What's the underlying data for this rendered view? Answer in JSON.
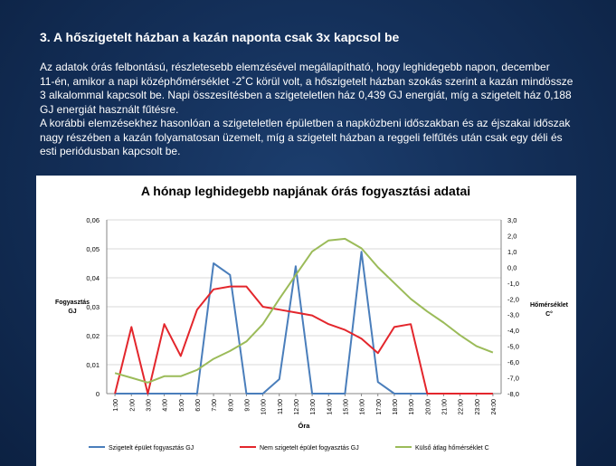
{
  "heading": "3. A hőszigetelt házban a kazán naponta csak 3x kapcsol be",
  "paragraph_lines": [
    "Az adatok órás felbontású, részletesebb elemzésével megállapítható, hogy leghidegebb napon, december",
    "11-én, amikor a napi középhőmérséklet -2˚C körül volt, a hőszigetelt házban szokás szerint a kazán mindössze",
    "3 alkalommal kapcsolt be. Napi összesítésben a szigeteletlen ház 0,439 GJ energiát, míg a szigetelt ház 0,188",
    "GJ energiát használt fűtésre.",
    "A korábbi elemzésekhez hasonlóan a szigeteletlen épületben a napközbeni időszakban és az éjszakai időszak",
    "nagy részében a kazán folyamatosan üzemelt, míg a szigetelt házban a reggeli felfűtés után csak egy déli és",
    "esti periódusban kapcsolt be."
  ],
  "chart_data": {
    "type": "line",
    "title": "A hónap leghidegebb napjának órás fogyasztási adatai",
    "xlabel": "Óra",
    "ylabel_left": "Fogyasztás GJ",
    "ylabel_right": "Hőmérséklet C°",
    "categories": [
      "1:00",
      "2:00",
      "3:00",
      "4:00",
      "5:00",
      "6:00",
      "7:00",
      "8:00",
      "9:00",
      "10:00",
      "11:00",
      "12:00",
      "13:00",
      "14:00",
      "15:00",
      "16:00",
      "17:00",
      "18:00",
      "19:00",
      "20:00",
      "21:00",
      "22:00",
      "23:00",
      "24:00"
    ],
    "yleft": {
      "min": 0,
      "max": 0.06,
      "ticks": [
        "0",
        "0,01",
        "0,02",
        "0,03",
        "0,04",
        "0,05",
        "0,06"
      ]
    },
    "yright": {
      "min": -8,
      "max": 3,
      "ticks": [
        "-8,0",
        "-7,0",
        "-6,0",
        "-5,0",
        "-4,0",
        "-3,0",
        "-2,0",
        "-1,0",
        "0,0",
        "1,0",
        "2,0",
        "3,0"
      ]
    },
    "grid": true,
    "legend_position": "bottom",
    "series": [
      {
        "name": "Szigetelt épület fogyasztás GJ",
        "axis": "left",
        "color": "#4a7ebb",
        "values": [
          0,
          0,
          0,
          0,
          0,
          0,
          0.045,
          0.041,
          0,
          0,
          0.005,
          0.044,
          0,
          0,
          0,
          0.049,
          0.004,
          0,
          0,
          0,
          0,
          0,
          0,
          0
        ]
      },
      {
        "name": "Nem szigetelt épület fogyasztás GJ",
        "axis": "left",
        "color": "#e3262c",
        "values": [
          0,
          0.023,
          0,
          0.024,
          0.013,
          0.029,
          0.036,
          0.037,
          0.037,
          0.03,
          0.029,
          0.028,
          0.027,
          0.024,
          0.022,
          0.019,
          0.014,
          0.023,
          0.024,
          0,
          0,
          0,
          0,
          0
        ]
      },
      {
        "name": "Külső átlag hőmérséklet C",
        "axis": "right",
        "color": "#9bbb59",
        "values": [
          -6.7,
          -7.0,
          -7.3,
          -6.9,
          -6.9,
          -6.5,
          -5.8,
          -5.3,
          -4.7,
          -3.6,
          -2.0,
          -0.5,
          1.0,
          1.7,
          1.8,
          1.2,
          0.0,
          -1.0,
          -2.0,
          -2.8,
          -3.5,
          -4.3,
          -5.0,
          -5.4
        ]
      }
    ]
  }
}
